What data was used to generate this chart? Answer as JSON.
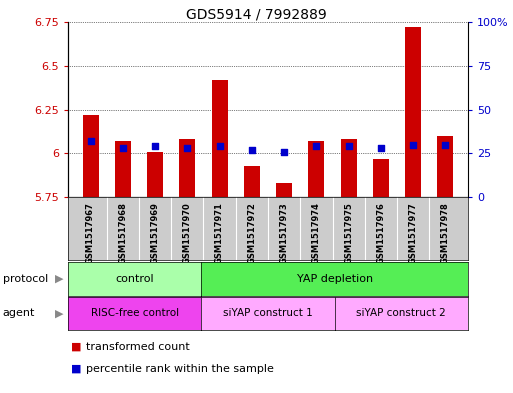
{
  "title": "GDS5914 / 7992889",
  "samples": [
    "GSM1517967",
    "GSM1517968",
    "GSM1517969",
    "GSM1517970",
    "GSM1517971",
    "GSM1517972",
    "GSM1517973",
    "GSM1517974",
    "GSM1517975",
    "GSM1517976",
    "GSM1517977",
    "GSM1517978"
  ],
  "transformed_count": [
    6.22,
    6.07,
    6.01,
    6.08,
    6.42,
    5.93,
    5.83,
    6.07,
    6.08,
    5.97,
    6.72,
    6.1
  ],
  "percentile_rank": [
    32,
    28,
    29,
    28,
    29,
    27,
    26,
    29,
    29,
    28,
    30,
    30
  ],
  "ymin": 5.75,
  "ymax": 6.75,
  "yticks": [
    5.75,
    6.0,
    6.25,
    6.5,
    6.75
  ],
  "ytick_labels": [
    "5.75",
    "6",
    "6.25",
    "6.5",
    "6.75"
  ],
  "y2min": 0,
  "y2max": 100,
  "y2ticks": [
    0,
    25,
    50,
    75,
    100
  ],
  "y2tick_labels": [
    "0",
    "25",
    "50",
    "75",
    "100%"
  ],
  "bar_color": "#cc0000",
  "dot_color": "#0000cc",
  "protocol_labels": [
    "control",
    "YAP depletion"
  ],
  "protocol_color_control": "#aaffaa",
  "protocol_color_yap": "#55ee55",
  "agent_labels": [
    "RISC-free control",
    "siYAP construct 1",
    "siYAP construct 2"
  ],
  "agent_color_risc": "#ee44ee",
  "agent_color_siyap": "#ffaaff",
  "sample_bg_color": "#cccccc",
  "label_protocol": "protocol",
  "label_agent": "agent",
  "legend_red": "transformed count",
  "legend_blue": "percentile rank within the sample",
  "bar_width": 0.5,
  "arrow_color": "#888888"
}
